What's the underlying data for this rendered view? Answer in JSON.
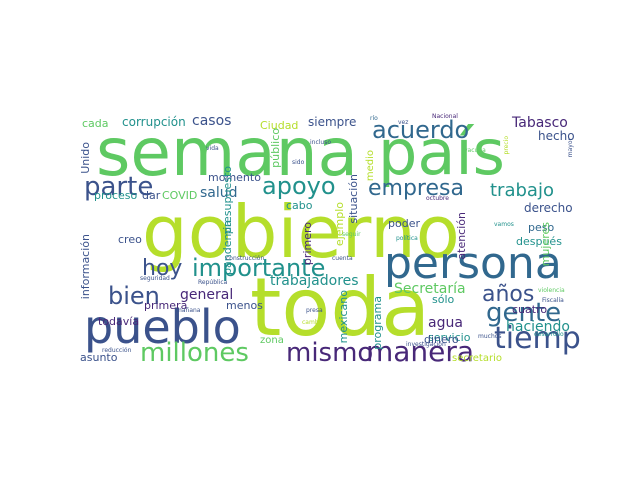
{
  "words": [
    {
      "id": "w0",
      "text": "gobierno",
      "color": "#b5de2b"
    },
    {
      "id": "w1",
      "text": "semana",
      "color": "#5ec962"
    },
    {
      "id": "w2",
      "text": "país",
      "color": "#5ec962"
    },
    {
      "id": "w3",
      "text": "toda",
      "color": "#b5de2b"
    },
    {
      "id": "w4",
      "text": "persona",
      "color": "#31688e"
    },
    {
      "id": "w5",
      "text": "pueblo",
      "color": "#3b528b"
    },
    {
      "id": "w6",
      "text": "importante",
      "color": "#21918c"
    },
    {
      "id": "w7",
      "text": "tiempo",
      "color": "#3b528b"
    },
    {
      "id": "w8",
      "text": "mismo",
      "color": "#482878"
    },
    {
      "id": "w9",
      "text": "manera",
      "color": "#482878"
    },
    {
      "id": "w10",
      "text": "gente",
      "color": "#31688e"
    },
    {
      "id": "w11",
      "text": "acuerdo",
      "color": "#31688e"
    },
    {
      "id": "w12",
      "text": "millones",
      "color": "#5ec962"
    },
    {
      "id": "w13",
      "text": "apoyo",
      "color": "#21918c"
    },
    {
      "id": "w14",
      "text": "parte",
      "color": "#3b528b"
    },
    {
      "id": "w15",
      "text": "bien",
      "color": "#3b528b"
    },
    {
      "id": "w16",
      "text": "empresa",
      "color": "#31688e"
    },
    {
      "id": "w17",
      "text": "hoy",
      "color": "#3b528b"
    },
    {
      "id": "w18",
      "text": "años",
      "color": "#3b528b"
    },
    {
      "id": "w19",
      "text": "trabajo",
      "color": "#21918c"
    },
    {
      "id": "w20",
      "text": "trabajadores",
      "color": "#21918c"
    },
    {
      "id": "w21",
      "text": "haciendo",
      "color": "#21918c"
    },
    {
      "id": "w22",
      "text": "Tabasco",
      "color": "#482878"
    },
    {
      "id": "w23",
      "text": "casos",
      "color": "#3b528b"
    },
    {
      "id": "w24",
      "text": "corrupción",
      "color": "#21918c"
    },
    {
      "id": "w25",
      "text": "Secretaría",
      "color": "#5ec962"
    },
    {
      "id": "w26",
      "text": "agua",
      "color": "#482878"
    },
    {
      "id": "w27",
      "text": "salud",
      "color": "#31688e"
    },
    {
      "id": "w28",
      "text": "general",
      "color": "#482878"
    },
    {
      "id": "w29",
      "text": "siempre",
      "color": "#3b528b"
    },
    {
      "id": "w30",
      "text": "cada",
      "color": "#5ec962"
    },
    {
      "id": "w31",
      "text": "hecho",
      "color": "#3b528b"
    },
    {
      "id": "w32",
      "text": "derecho",
      "color": "#3b528b"
    },
    {
      "id": "w33",
      "text": "momento",
      "color": "#3b528b"
    },
    {
      "id": "w34",
      "text": "Ciudad",
      "color": "#b5de2b"
    },
    {
      "id": "w35",
      "text": "proceso",
      "color": "#21918c"
    },
    {
      "id": "w36",
      "text": "dar",
      "color": "#3b528b"
    },
    {
      "id": "w37",
      "text": "COVID",
      "color": "#5ec962"
    },
    {
      "id": "w38",
      "text": "cabo",
      "color": "#21918c"
    },
    {
      "id": "w39",
      "text": "creo",
      "color": "#3b528b"
    },
    {
      "id": "w40",
      "text": "sólo",
      "color": "#21918c"
    },
    {
      "id": "w41",
      "text": "poder",
      "color": "#3b528b"
    },
    {
      "id": "w42",
      "text": "servicio",
      "color": "#21918c"
    },
    {
      "id": "w43",
      "text": "después",
      "color": "#21918c"
    },
    {
      "id": "w44",
      "text": "peso",
      "color": "#31688e"
    },
    {
      "id": "w45",
      "text": "cuatro",
      "color": "#482878"
    },
    {
      "id": "w46",
      "text": "primera",
      "color": "#482878"
    },
    {
      "id": "w47",
      "text": "todavía",
      "color": "#482878"
    },
    {
      "id": "w48",
      "text": "menos",
      "color": "#3b528b"
    },
    {
      "id": "w49",
      "text": "dinero",
      "color": "#3b528b"
    },
    {
      "id": "w50",
      "text": "asunto",
      "color": "#3b528b"
    },
    {
      "id": "w51",
      "text": "zona",
      "color": "#5ec962"
    },
    {
      "id": "w52",
      "text": "secretario",
      "color": "#b5de2b"
    },
    {
      "id": "w53",
      "text": "Unido",
      "color": "#3b528b"
    },
    {
      "id": "w54",
      "text": "información",
      "color": "#3b528b"
    },
    {
      "id": "w55",
      "text": "presupuesto",
      "color": "#21918c"
    },
    {
      "id": "w56",
      "text": "pandemia",
      "color": "#21918c"
    },
    {
      "id": "w57",
      "text": "primero",
      "color": "#482878"
    },
    {
      "id": "w58",
      "text": "ejemplo",
      "color": "#b5de2b"
    },
    {
      "id": "w59",
      "text": "situación",
      "color": "#3b528b"
    },
    {
      "id": "w60",
      "text": "medio",
      "color": "#b5de2b"
    },
    {
      "id": "w61",
      "text": "público",
      "color": "#5ec962"
    },
    {
      "id": "w62",
      "text": "mexicano",
      "color": "#21918c"
    },
    {
      "id": "w63",
      "text": "programa",
      "color": "#21918c"
    },
    {
      "id": "w64",
      "text": "atención",
      "color": "#482878"
    },
    {
      "id": "w65",
      "text": "mujeres",
      "color": "#5ec962"
    },
    {
      "id": "w66",
      "text": "vida",
      "color": "#3b528b"
    },
    {
      "id": "w67",
      "text": "incluso",
      "color": "#3b528b"
    },
    {
      "id": "w68",
      "text": "sido",
      "color": "#3b528b"
    },
    {
      "id": "w69",
      "text": "río",
      "color": "#31688e"
    },
    {
      "id": "w70",
      "text": "vez",
      "color": "#3b528b"
    },
    {
      "id": "w71",
      "text": "Nacional",
      "color": "#482878"
    },
    {
      "id": "w72",
      "text": "vacuna",
      "color": "#5ec962"
    },
    {
      "id": "w73",
      "text": "precio",
      "color": "#b5de2b"
    },
    {
      "id": "w74",
      "text": "mayor",
      "color": "#3b528b"
    },
    {
      "id": "w75",
      "text": "octubre",
      "color": "#482878"
    },
    {
      "id": "w76",
      "text": "vamos",
      "color": "#21918c"
    },
    {
      "id": "w77",
      "text": "seguir",
      "color": "#5ec962"
    },
    {
      "id": "w78",
      "text": "política",
      "color": "#21918c"
    },
    {
      "id": "w79",
      "text": "cuenta",
      "color": "#3b528b"
    },
    {
      "id": "w80",
      "text": "construcción",
      "color": "#3b528b"
    },
    {
      "id": "w81",
      "text": "seguridad",
      "color": "#3b528b"
    },
    {
      "id": "w82",
      "text": "República",
      "color": "#3b528b"
    },
    {
      "id": "w83",
      "text": "mañana",
      "color": "#3b528b"
    },
    {
      "id": "w84",
      "text": "presa",
      "color": "#3b528b"
    },
    {
      "id": "w85",
      "text": "cambio",
      "color": "#b5de2b"
    },
    {
      "id": "w86",
      "text": "violencia",
      "color": "#5ec962"
    },
    {
      "id": "w87",
      "text": "Fiscalía",
      "color": "#3b528b"
    },
    {
      "id": "w88",
      "text": "muchos",
      "color": "#3b528b"
    },
    {
      "id": "w89",
      "text": "desarrollo",
      "color": "#21918c"
    },
    {
      "id": "w90",
      "text": "reducción",
      "color": "#3b528b"
    },
    {
      "id": "w91",
      "text": "investigación",
      "color": "#3b528b"
    }
  ]
}
